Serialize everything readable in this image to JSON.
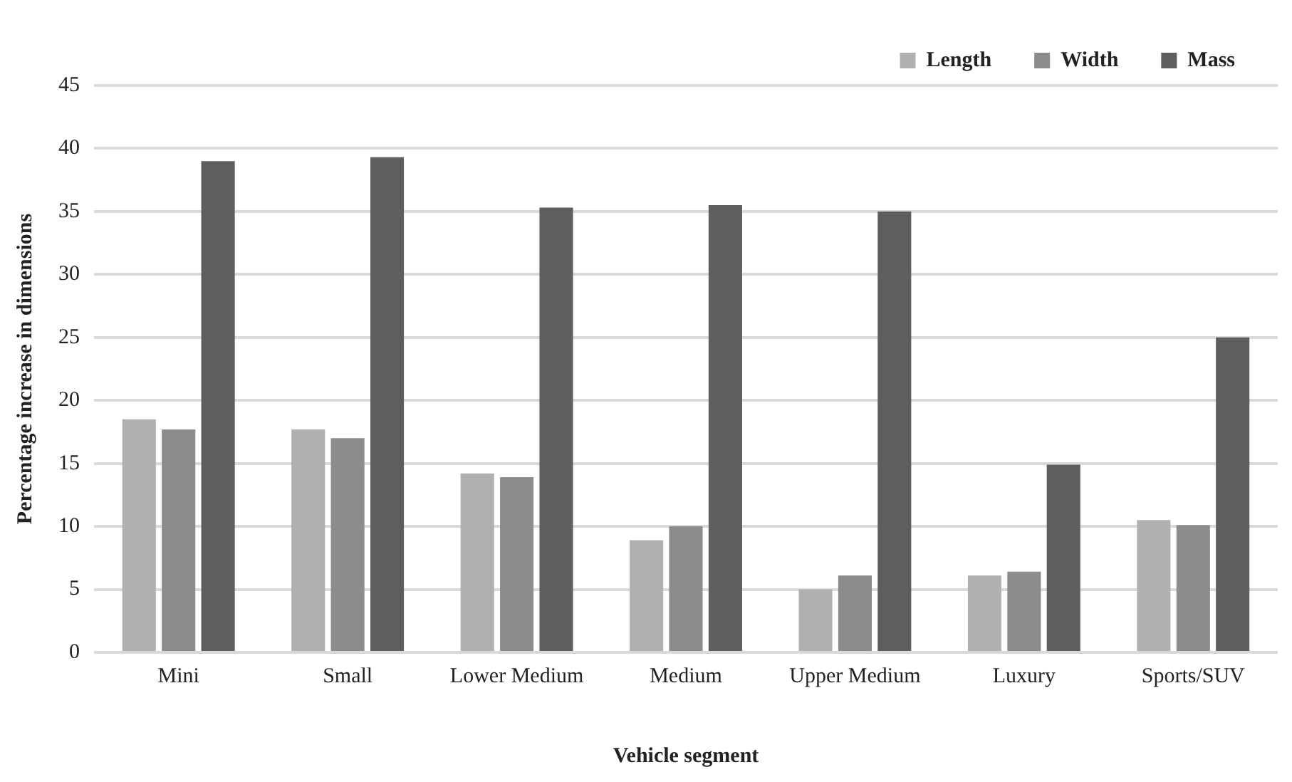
{
  "chart_data": {
    "type": "bar",
    "xlabel": "Vehicle segment",
    "ylabel": "Percentage increase in dimensions",
    "categories": [
      "Mini",
      "Small",
      "Lower Medium",
      "Medium",
      "Upper Medium",
      "Luxury",
      "Sports/SUV"
    ],
    "series": [
      {
        "name": "Length",
        "color": "#b0b0b2",
        "values": [
          18.5,
          17.7,
          14.2,
          8.9,
          5.0,
          6.1,
          10.5
        ]
      },
      {
        "name": "Width",
        "color": "#8c8c8e",
        "values": [
          17.7,
          17.0,
          13.9,
          10.0,
          6.1,
          6.4,
          10.1
        ]
      },
      {
        "name": "Mass",
        "color": "#5e5e60",
        "values": [
          39.0,
          39.3,
          35.3,
          35.5,
          35.0,
          14.9,
          25.0
        ]
      }
    ],
    "ylim": [
      0,
      45
    ],
    "yticks": [
      0,
      5,
      10,
      15,
      20,
      25,
      30,
      35,
      40,
      45
    ],
    "grid": "y",
    "legend": "top right"
  }
}
